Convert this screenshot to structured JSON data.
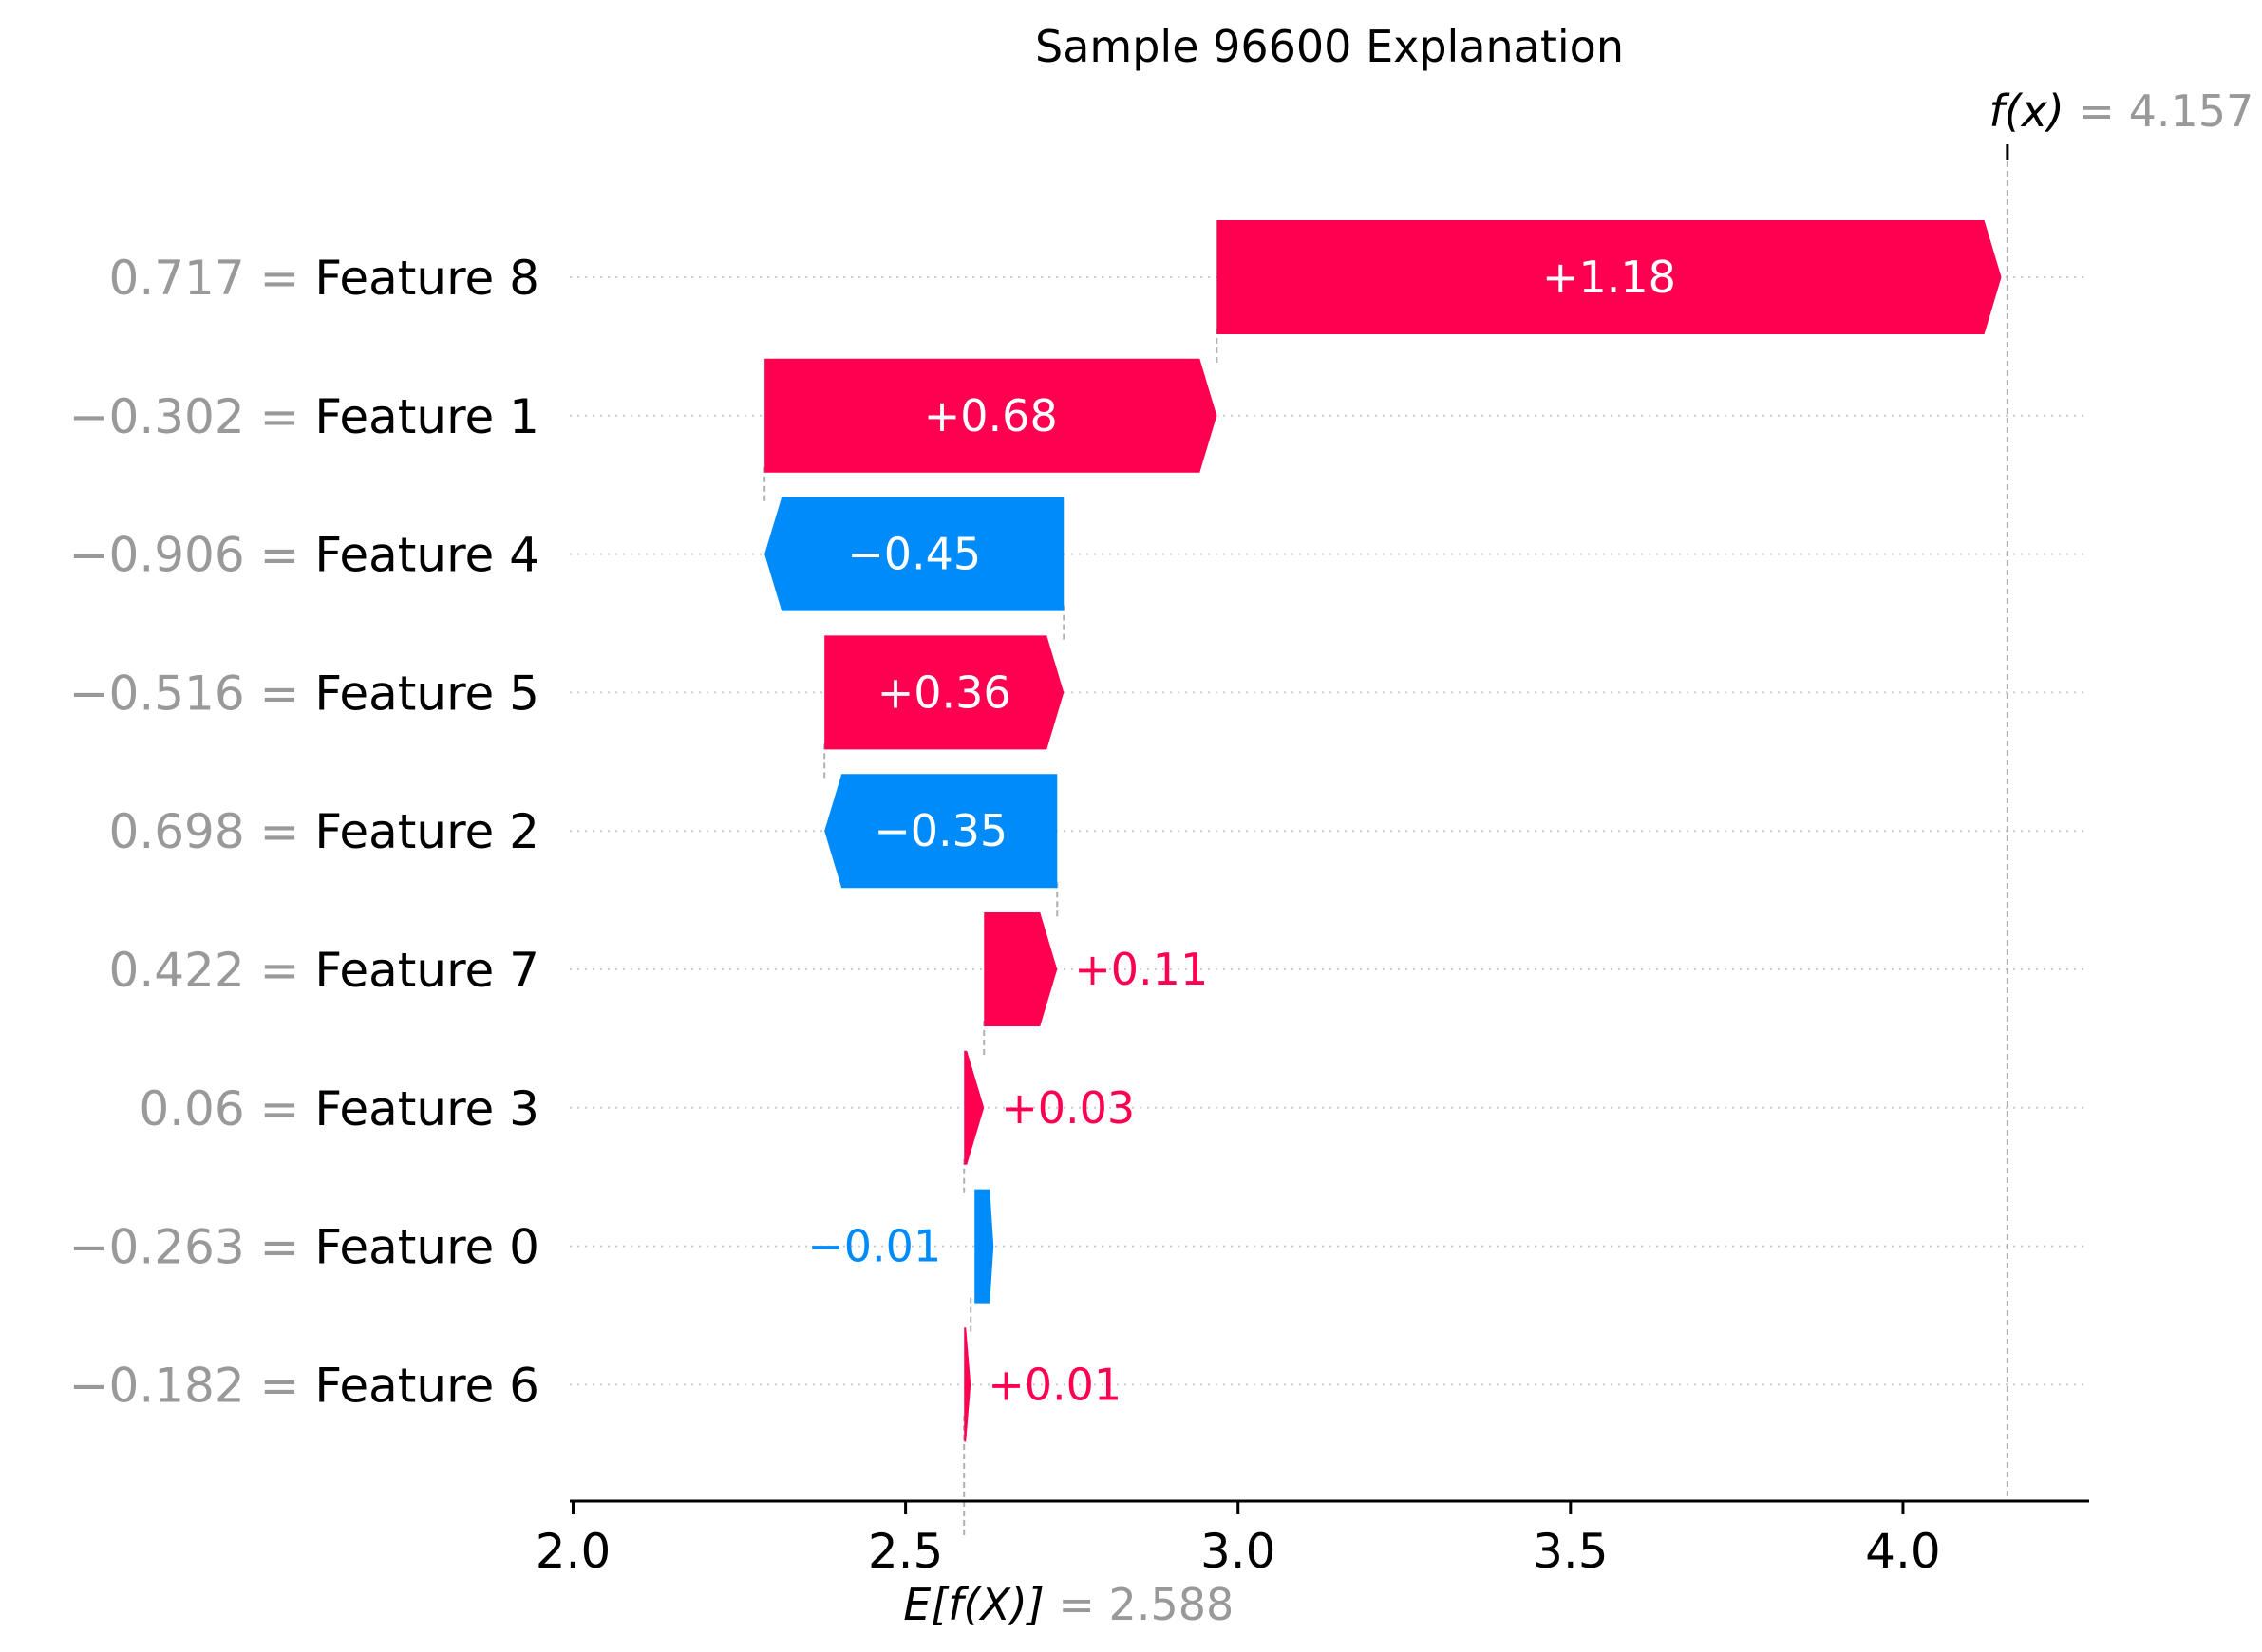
{
  "chart_data": {
    "type": "waterfall",
    "title": "Sample 96600 Explanation",
    "base_value": 2.588,
    "output_value": 4.157,
    "fx_label": "f(x)",
    "fx_value_text": "= 4.157",
    "efx_label": "E[f(X)]",
    "efx_value_text": "= 2.588",
    "xlim": [
      1.995,
      4.28
    ],
    "x_ticks": [
      2.0,
      2.5,
      3.0,
      3.5,
      4.0
    ],
    "x_tick_labels": [
      "2.0",
      "2.5",
      "3.0",
      "3.5",
      "4.0"
    ],
    "colors": {
      "positive": "#ff0051",
      "negative": "#008bfb",
      "gray": "#999999",
      "text": "#000000"
    },
    "features": [
      {
        "name": "Feature 8",
        "value_text": "0.717",
        "contribution": 1.18,
        "label": "+1.18"
      },
      {
        "name": "Feature 1",
        "value_text": "−0.302",
        "contribution": 0.68,
        "label": "+0.68"
      },
      {
        "name": "Feature 4",
        "value_text": "−0.906",
        "contribution": -0.45,
        "label": "−0.45"
      },
      {
        "name": "Feature 5",
        "value_text": "−0.516",
        "contribution": 0.36,
        "label": "+0.36"
      },
      {
        "name": "Feature 2",
        "value_text": "0.698",
        "contribution": -0.35,
        "label": "−0.35"
      },
      {
        "name": "Feature 7",
        "value_text": "0.422",
        "contribution": 0.11,
        "label": "+0.11"
      },
      {
        "name": "Feature 3",
        "value_text": "0.06",
        "contribution": 0.03,
        "label": "+0.03"
      },
      {
        "name": "Feature 0",
        "value_text": "−0.263",
        "contribution": -0.01,
        "label": "−0.01"
      },
      {
        "name": "Feature 6",
        "value_text": "−0.182",
        "contribution": 0.01,
        "label": "+0.01"
      }
    ]
  }
}
